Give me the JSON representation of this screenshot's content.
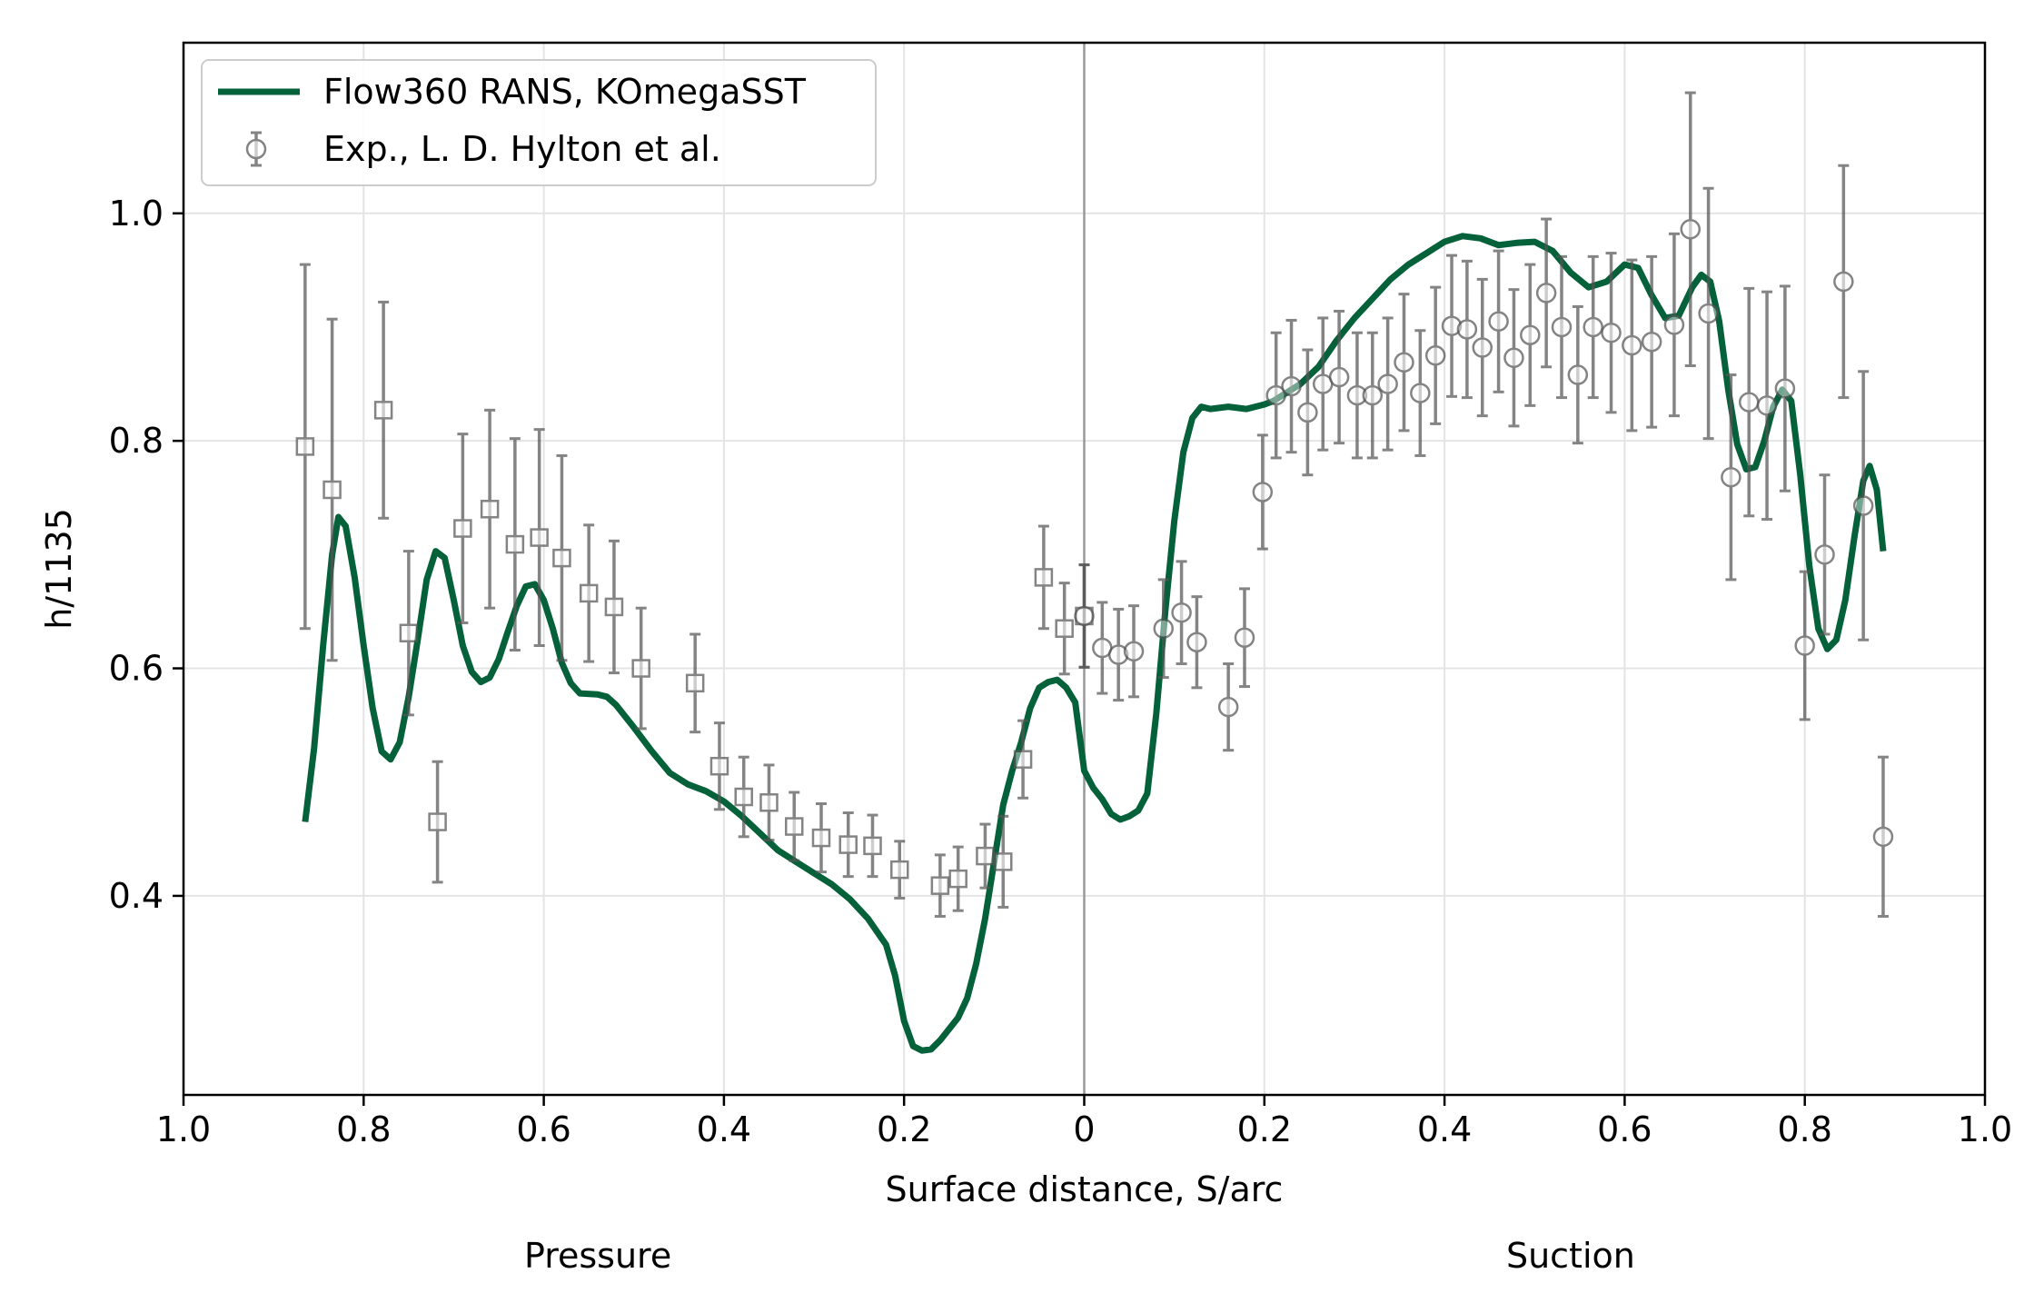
{
  "chart_data": {
    "type": "line",
    "xlabel": "Surface distance, S/arc",
    "ylabel": "h/1135",
    "x_tick_labels": [
      "1.0",
      "0.8",
      "0.6",
      "0.4",
      "0.2",
      "0",
      "0.2",
      "0.4",
      "0.6",
      "0.8",
      "1.0"
    ],
    "y_tick_labels": [
      "0.4",
      "0.6",
      "0.8",
      "1.0"
    ],
    "xlim": [
      -1.0,
      1.0
    ],
    "ylim": [
      0.225,
      1.15
    ],
    "grid": true,
    "legend_position": "top-left",
    "side_labels": {
      "pressure": "Pressure",
      "suction": "Suction"
    },
    "colors": {
      "cfd": "#04613a",
      "experiment": "#555555",
      "grid": "#e4e4e4",
      "centerline": "#999999"
    },
    "series": [
      {
        "name": "Flow360 RANS, KOmegaSST",
        "kind": "line",
        "points": [
          [
            -0.865,
            0.465
          ],
          [
            -0.855,
            0.53
          ],
          [
            -0.845,
            0.62
          ],
          [
            -0.835,
            0.7
          ],
          [
            -0.828,
            0.733
          ],
          [
            -0.82,
            0.725
          ],
          [
            -0.81,
            0.68
          ],
          [
            -0.8,
            0.62
          ],
          [
            -0.79,
            0.565
          ],
          [
            -0.78,
            0.527
          ],
          [
            -0.77,
            0.52
          ],
          [
            -0.76,
            0.535
          ],
          [
            -0.75,
            0.575
          ],
          [
            -0.74,
            0.625
          ],
          [
            -0.73,
            0.678
          ],
          [
            -0.72,
            0.703
          ],
          [
            -0.71,
            0.697
          ],
          [
            -0.7,
            0.66
          ],
          [
            -0.69,
            0.62
          ],
          [
            -0.68,
            0.597
          ],
          [
            -0.67,
            0.588
          ],
          [
            -0.66,
            0.592
          ],
          [
            -0.65,
            0.608
          ],
          [
            -0.64,
            0.632
          ],
          [
            -0.63,
            0.655
          ],
          [
            -0.62,
            0.672
          ],
          [
            -0.61,
            0.674
          ],
          [
            -0.6,
            0.66
          ],
          [
            -0.59,
            0.635
          ],
          [
            -0.58,
            0.605
          ],
          [
            -0.57,
            0.587
          ],
          [
            -0.56,
            0.578
          ],
          [
            -0.54,
            0.577
          ],
          [
            -0.53,
            0.575
          ],
          [
            -0.52,
            0.568
          ],
          [
            -0.5,
            0.548
          ],
          [
            -0.48,
            0.527
          ],
          [
            -0.46,
            0.508
          ],
          [
            -0.44,
            0.498
          ],
          [
            -0.42,
            0.492
          ],
          [
            -0.4,
            0.483
          ],
          [
            -0.38,
            0.47
          ],
          [
            -0.36,
            0.455
          ],
          [
            -0.34,
            0.44
          ],
          [
            -0.32,
            0.43
          ],
          [
            -0.3,
            0.42
          ],
          [
            -0.28,
            0.41
          ],
          [
            -0.26,
            0.397
          ],
          [
            -0.24,
            0.38
          ],
          [
            -0.22,
            0.357
          ],
          [
            -0.21,
            0.33
          ],
          [
            -0.2,
            0.29
          ],
          [
            -0.19,
            0.268
          ],
          [
            -0.18,
            0.264
          ],
          [
            -0.17,
            0.265
          ],
          [
            -0.16,
            0.273
          ],
          [
            -0.15,
            0.283
          ],
          [
            -0.14,
            0.293
          ],
          [
            -0.13,
            0.31
          ],
          [
            -0.12,
            0.34
          ],
          [
            -0.11,
            0.38
          ],
          [
            -0.1,
            0.43
          ],
          [
            -0.09,
            0.48
          ],
          [
            -0.08,
            0.51
          ],
          [
            -0.07,
            0.535
          ],
          [
            -0.06,
            0.565
          ],
          [
            -0.05,
            0.583
          ],
          [
            -0.04,
            0.588
          ],
          [
            -0.03,
            0.59
          ],
          [
            -0.02,
            0.583
          ],
          [
            -0.01,
            0.57
          ],
          [
            0.0,
            0.51
          ],
          [
            0.01,
            0.495
          ],
          [
            0.02,
            0.485
          ],
          [
            0.03,
            0.472
          ],
          [
            0.04,
            0.467
          ],
          [
            0.05,
            0.47
          ],
          [
            0.06,
            0.475
          ],
          [
            0.07,
            0.49
          ],
          [
            0.08,
            0.56
          ],
          [
            0.09,
            0.65
          ],
          [
            0.1,
            0.73
          ],
          [
            0.11,
            0.79
          ],
          [
            0.12,
            0.82
          ],
          [
            0.13,
            0.83
          ],
          [
            0.14,
            0.828
          ],
          [
            0.16,
            0.83
          ],
          [
            0.18,
            0.828
          ],
          [
            0.2,
            0.832
          ],
          [
            0.21,
            0.835
          ],
          [
            0.22,
            0.84
          ],
          [
            0.24,
            0.85
          ],
          [
            0.26,
            0.865
          ],
          [
            0.28,
            0.888
          ],
          [
            0.3,
            0.908
          ],
          [
            0.32,
            0.925
          ],
          [
            0.34,
            0.942
          ],
          [
            0.36,
            0.955
          ],
          [
            0.38,
            0.965
          ],
          [
            0.4,
            0.975
          ],
          [
            0.42,
            0.98
          ],
          [
            0.44,
            0.978
          ],
          [
            0.46,
            0.972
          ],
          [
            0.48,
            0.974
          ],
          [
            0.5,
            0.975
          ],
          [
            0.52,
            0.967
          ],
          [
            0.54,
            0.948
          ],
          [
            0.56,
            0.935
          ],
          [
            0.58,
            0.94
          ],
          [
            0.6,
            0.955
          ],
          [
            0.615,
            0.952
          ],
          [
            0.63,
            0.928
          ],
          [
            0.645,
            0.908
          ],
          [
            0.66,
            0.91
          ],
          [
            0.675,
            0.935
          ],
          [
            0.685,
            0.946
          ],
          [
            0.695,
            0.94
          ],
          [
            0.705,
            0.905
          ],
          [
            0.715,
            0.845
          ],
          [
            0.725,
            0.797
          ],
          [
            0.735,
            0.775
          ],
          [
            0.745,
            0.777
          ],
          [
            0.755,
            0.8
          ],
          [
            0.765,
            0.83
          ],
          [
            0.775,
            0.845
          ],
          [
            0.785,
            0.835
          ],
          [
            0.795,
            0.77
          ],
          [
            0.805,
            0.69
          ],
          [
            0.815,
            0.635
          ],
          [
            0.825,
            0.617
          ],
          [
            0.835,
            0.625
          ],
          [
            0.845,
            0.66
          ],
          [
            0.855,
            0.715
          ],
          [
            0.865,
            0.765
          ],
          [
            0.872,
            0.778
          ],
          [
            0.88,
            0.757
          ],
          [
            0.887,
            0.703
          ]
        ]
      },
      {
        "name": "Exp., L. D. Hylton et al.",
        "kind": "errorbar",
        "pressure_points": [
          [
            -0.865,
            0.795,
            0.16
          ],
          [
            -0.835,
            0.757,
            0.15
          ],
          [
            -0.778,
            0.827,
            0.095
          ],
          [
            -0.75,
            0.631,
            0.072
          ],
          [
            -0.718,
            0.465,
            0.053
          ],
          [
            -0.69,
            0.723,
            0.083
          ],
          [
            -0.66,
            0.74,
            0.087
          ],
          [
            -0.632,
            0.709,
            0.093
          ],
          [
            -0.605,
            0.715,
            0.095
          ],
          [
            -0.58,
            0.697,
            0.09
          ],
          [
            -0.55,
            0.666,
            0.06
          ],
          [
            -0.522,
            0.654,
            0.058
          ],
          [
            -0.492,
            0.6,
            0.053
          ],
          [
            -0.432,
            0.587,
            0.043
          ],
          [
            -0.405,
            0.514,
            0.038
          ],
          [
            -0.378,
            0.487,
            0.035
          ],
          [
            -0.35,
            0.482,
            0.033
          ],
          [
            -0.322,
            0.461,
            0.03
          ],
          [
            -0.292,
            0.451,
            0.03
          ],
          [
            -0.262,
            0.445,
            0.028
          ],
          [
            -0.235,
            0.444,
            0.027
          ],
          [
            -0.205,
            0.423,
            0.025
          ],
          [
            -0.16,
            0.409,
            0.027
          ],
          [
            -0.14,
            0.415,
            0.028
          ],
          [
            -0.11,
            0.435,
            0.028
          ],
          [
            -0.09,
            0.43,
            0.04
          ],
          [
            -0.068,
            0.52,
            0.034
          ],
          [
            -0.045,
            0.68,
            0.045
          ],
          [
            -0.022,
            0.635,
            0.04
          ],
          [
            0.0,
            0.646,
            0.045
          ]
        ],
        "suction_points": [
          [
            0.0,
            0.646,
            0.045
          ],
          [
            0.02,
            0.618,
            0.04
          ],
          [
            0.038,
            0.612,
            0.04
          ],
          [
            0.055,
            0.615,
            0.04
          ],
          [
            0.088,
            0.635,
            0.043
          ],
          [
            0.108,
            0.649,
            0.045
          ],
          [
            0.125,
            0.623,
            0.04
          ],
          [
            0.16,
            0.566,
            0.038
          ],
          [
            0.178,
            0.627,
            0.043
          ],
          [
            0.198,
            0.755,
            0.05
          ],
          [
            0.213,
            0.84,
            0.055
          ],
          [
            0.23,
            0.848,
            0.058
          ],
          [
            0.248,
            0.825,
            0.055
          ],
          [
            0.265,
            0.85,
            0.058
          ],
          [
            0.283,
            0.856,
            0.058
          ],
          [
            0.303,
            0.84,
            0.055
          ],
          [
            0.32,
            0.84,
            0.055
          ],
          [
            0.337,
            0.85,
            0.058
          ],
          [
            0.355,
            0.869,
            0.06
          ],
          [
            0.373,
            0.842,
            0.055
          ],
          [
            0.39,
            0.875,
            0.06
          ],
          [
            0.408,
            0.901,
            0.062
          ],
          [
            0.425,
            0.898,
            0.06
          ],
          [
            0.442,
            0.882,
            0.06
          ],
          [
            0.46,
            0.905,
            0.062
          ],
          [
            0.477,
            0.873,
            0.06
          ],
          [
            0.495,
            0.893,
            0.062
          ],
          [
            0.513,
            0.93,
            0.065
          ],
          [
            0.53,
            0.9,
            0.062
          ],
          [
            0.548,
            0.858,
            0.06
          ],
          [
            0.565,
            0.9,
            0.062
          ],
          [
            0.585,
            0.895,
            0.07
          ],
          [
            0.608,
            0.884,
            0.075
          ],
          [
            0.63,
            0.887,
            0.075
          ],
          [
            0.655,
            0.902,
            0.08
          ],
          [
            0.673,
            0.986,
            0.12
          ],
          [
            0.693,
            0.912,
            0.11
          ],
          [
            0.718,
            0.768,
            0.09
          ],
          [
            0.738,
            0.834,
            0.1
          ],
          [
            0.758,
            0.831,
            0.1
          ],
          [
            0.778,
            0.846,
            0.09
          ],
          [
            0.8,
            0.62,
            0.065
          ],
          [
            0.822,
            0.7,
            0.07
          ],
          [
            0.843,
            0.94,
            0.102
          ],
          [
            0.865,
            0.743,
            0.118
          ],
          [
            0.887,
            0.452,
            0.07
          ]
        ]
      }
    ]
  }
}
